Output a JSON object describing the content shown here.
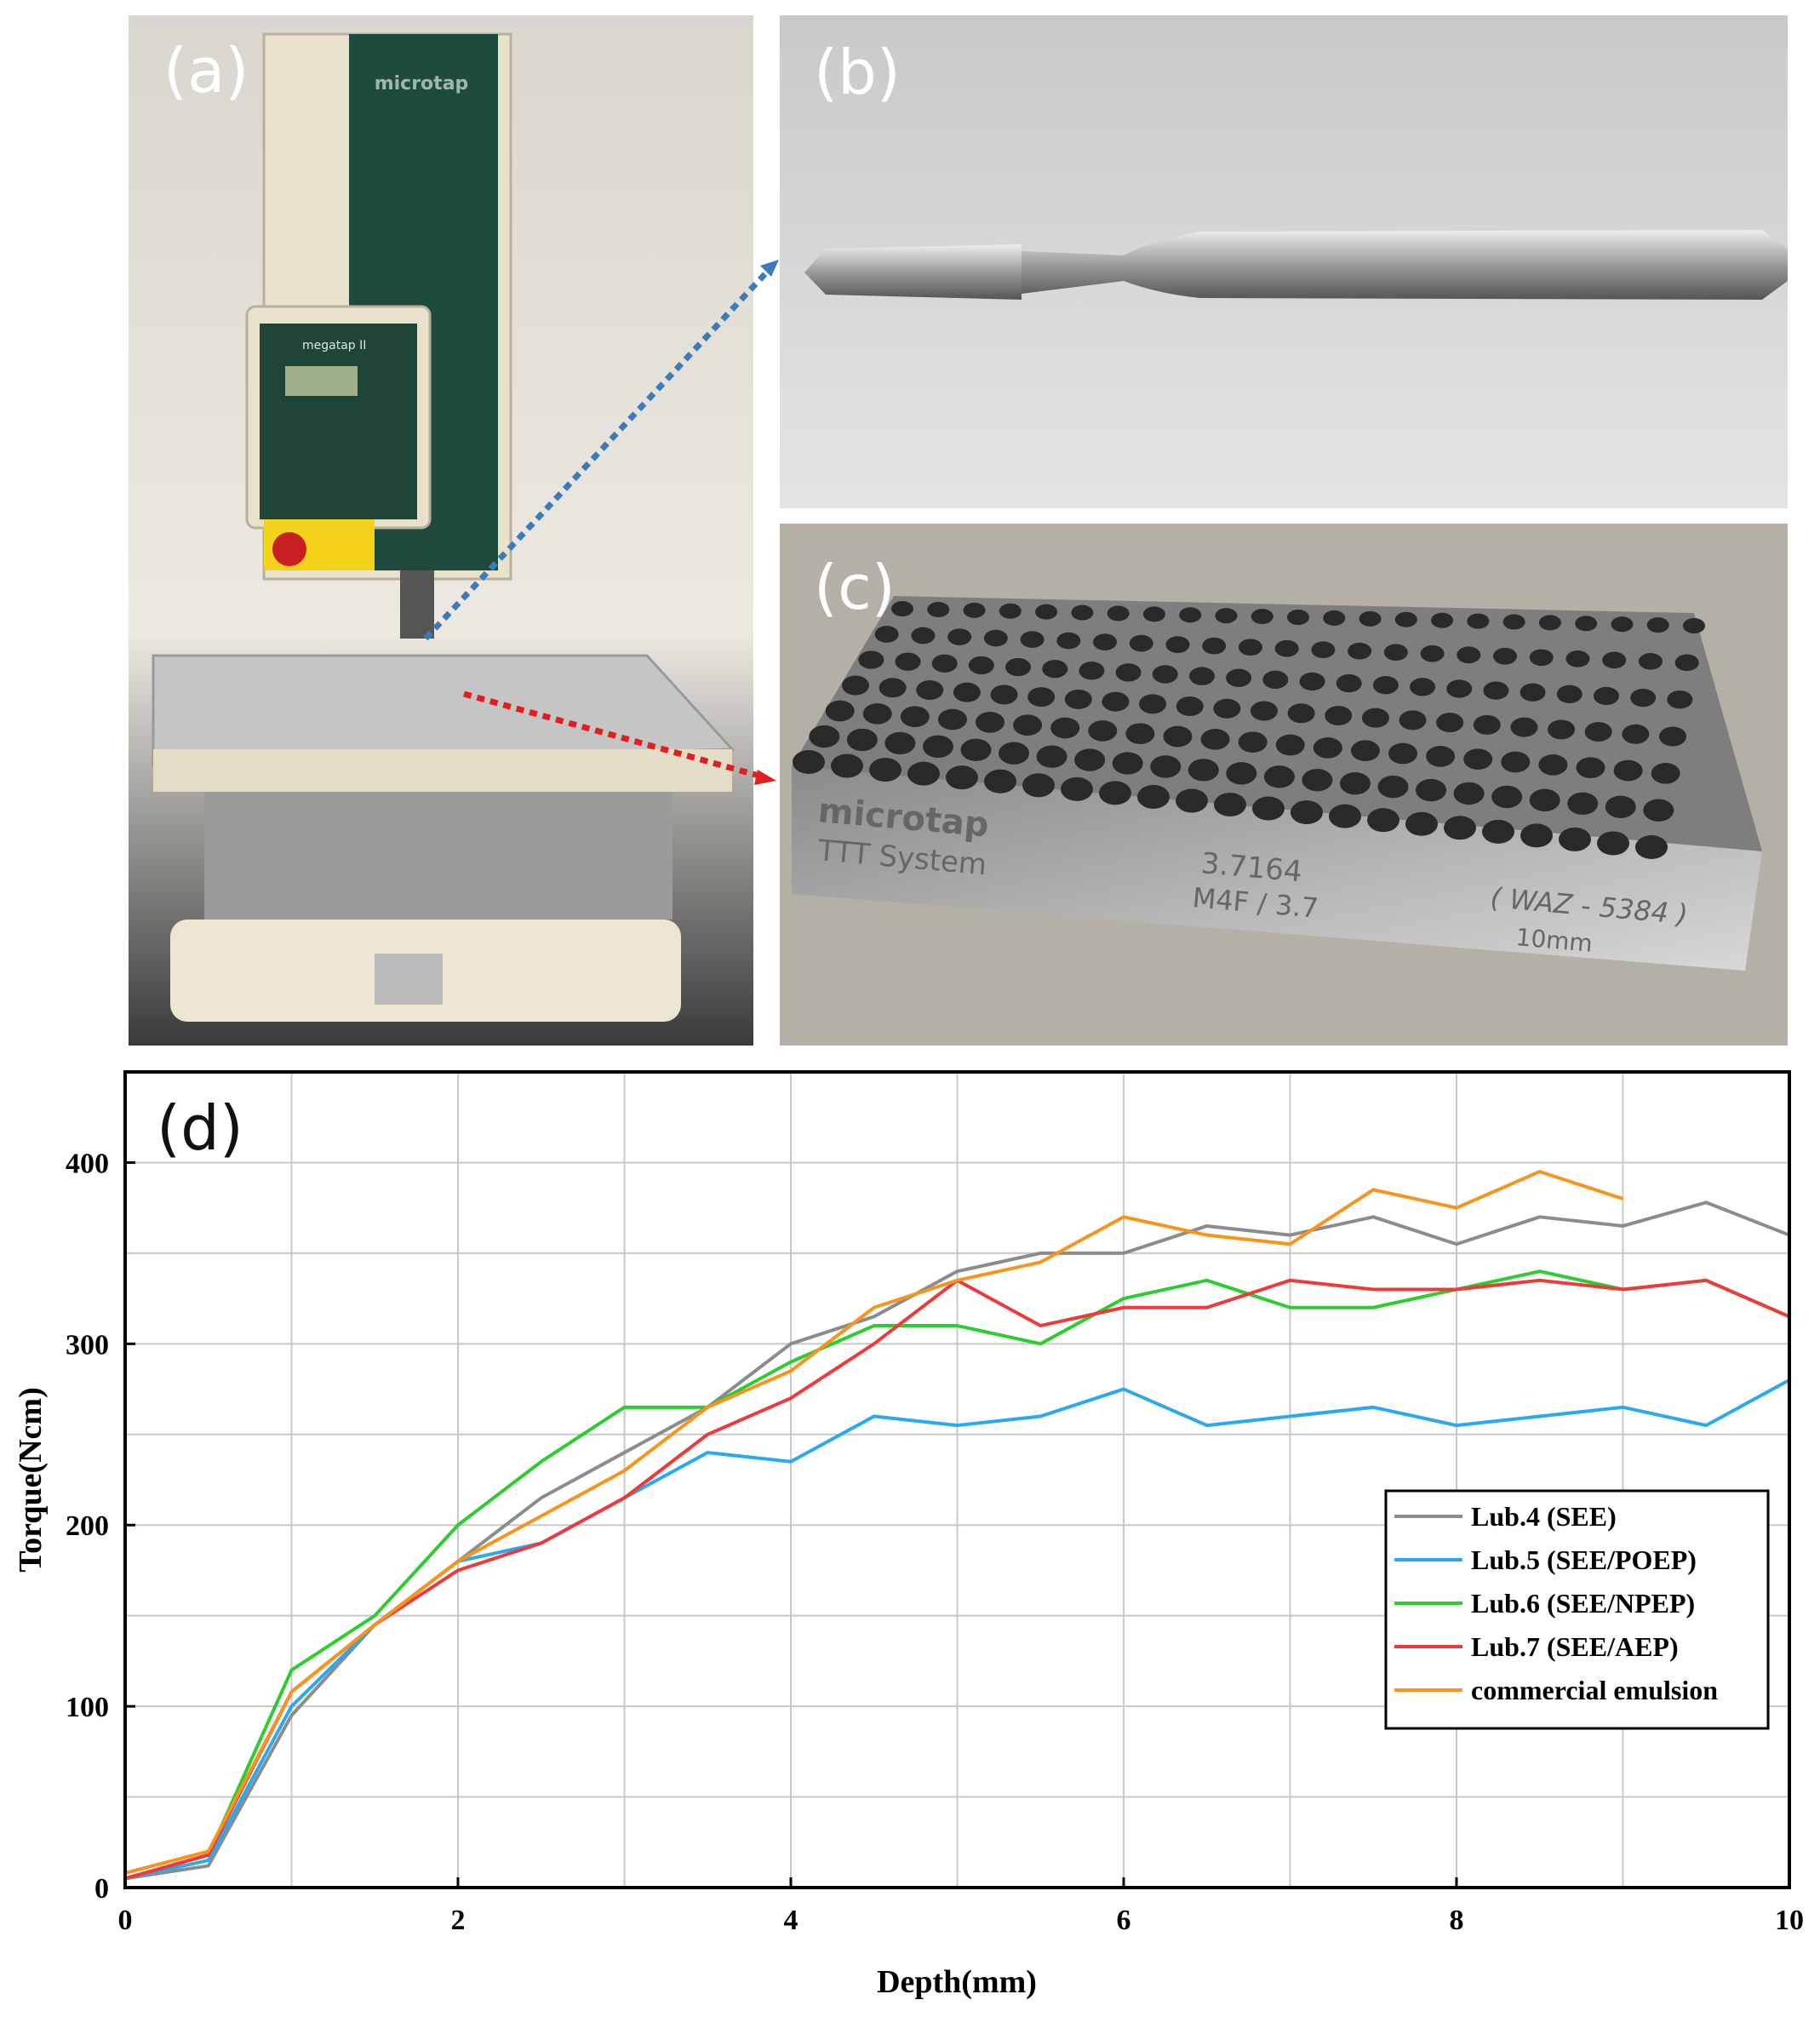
{
  "panels": {
    "a": {
      "label": "(a)",
      "texts": [
        "microtap",
        "megatap II"
      ]
    },
    "b": {
      "label": "(b)"
    },
    "c": {
      "label": "(c)",
      "texts": [
        "microtap",
        "TTT System",
        "3.7164",
        "M4F / 3.7",
        "( WAZ - 5384 )",
        "10mm"
      ]
    }
  },
  "chart_data": {
    "type": "line",
    "panel_label": "(d)",
    "x_label": "Depth(mm)",
    "y_label": "Torque(Ncm)",
    "x": [
      0,
      0.5,
      1,
      1.5,
      2,
      2.5,
      3,
      3.5,
      4,
      4.5,
      5,
      5.5,
      6,
      6.5,
      7,
      7.5,
      8,
      8.5,
      9,
      9.5,
      10
    ],
    "series": [
      {
        "name": "Lub.4 (SEE)",
        "color": "#8c8c8c",
        "values": [
          5,
          12,
          95,
          145,
          180,
          215,
          240,
          265,
          300,
          315,
          340,
          350,
          350,
          365,
          360,
          370,
          355,
          370,
          365,
          378,
          360
        ]
      },
      {
        "name": "Lub.5 (SEE/POEP)",
        "color": "#2aa8f0",
        "values": [
          5,
          15,
          100,
          145,
          180,
          190,
          215,
          240,
          235,
          260,
          255,
          260,
          275,
          255,
          260,
          265,
          255,
          260,
          265,
          255,
          280
        ]
      },
      {
        "name": "Lub.6 (SEE/NPEP)",
        "color": "#2ecc2e",
        "values": [
          5,
          18,
          120,
          150,
          200,
          235,
          265,
          265,
          290,
          310,
          310,
          300,
          325,
          335,
          320,
          320,
          330,
          340,
          330,
          335,
          315
        ]
      },
      {
        "name": "Lub.7 (SEE/AEP)",
        "color": "#ee3a3a",
        "values": [
          5,
          18,
          108,
          145,
          175,
          190,
          215,
          250,
          270,
          300,
          335,
          310,
          320,
          320,
          335,
          330,
          330,
          335,
          330,
          335,
          315
        ]
      },
      {
        "name": "commercial emulsion",
        "color": "#f7941d",
        "values": [
          8,
          20,
          108,
          145,
          180,
          205,
          230,
          265,
          285,
          320,
          335,
          345,
          370,
          360,
          355,
          385,
          375,
          395,
          380,
          null,
          null
        ]
      }
    ],
    "xlim": [
      0,
      10
    ],
    "ylim": [
      0,
      450
    ],
    "xticks": [
      0,
      2,
      4,
      6,
      8,
      10
    ],
    "yticks": [
      0,
      100,
      200,
      300,
      400
    ],
    "xgrid": [
      1,
      2,
      3,
      4,
      5,
      6,
      7,
      8,
      9
    ],
    "ygrid": [
      50,
      100,
      150,
      200,
      250,
      300,
      350,
      400
    ],
    "grid": true,
    "legend": "lower right"
  }
}
